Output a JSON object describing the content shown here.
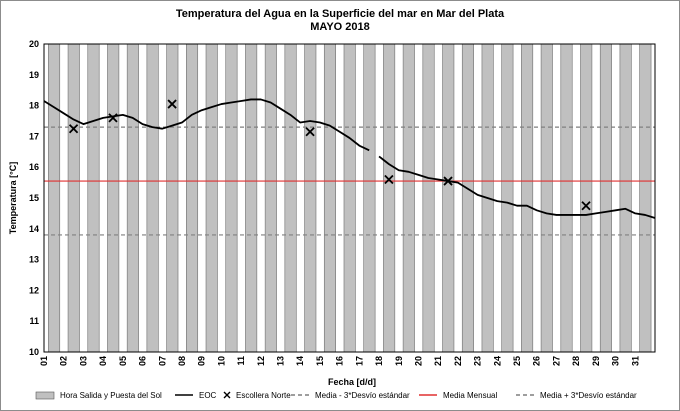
{
  "chart_data": {
    "type": "line",
    "title": "Temperatura del Agua en la Superficie del mar en Mar del Plata",
    "subtitle": "MAYO 2018",
    "xlabel": "Fecha [d/d]",
    "ylabel": "Temperatura [°C]",
    "ylim": [
      10,
      20
    ],
    "y_ticks": [
      "10",
      "11",
      "12",
      "13",
      "14",
      "15",
      "16",
      "17",
      "18",
      "19",
      "20"
    ],
    "x_ticks": [
      "01",
      "02",
      "03",
      "04",
      "05",
      "06",
      "07",
      "08",
      "09",
      "10",
      "11",
      "12",
      "13",
      "14",
      "15",
      "16",
      "17",
      "18",
      "19",
      "20",
      "21",
      "22",
      "23",
      "24",
      "25",
      "26",
      "27",
      "28",
      "29",
      "30",
      "31"
    ],
    "grid": false,
    "legend_position": "bottom",
    "colors": {
      "night_bars": "#c0c0c0",
      "eoc_line": "#000000",
      "mean_line": "#e03030",
      "std_lines": "#7f7f7f"
    },
    "night_bars_per_day": 1,
    "eoc": {
      "name": "EOC",
      "x": [
        1.0,
        1.5,
        2.0,
        2.5,
        3.0,
        3.5,
        4.0,
        4.5,
        5.0,
        5.5,
        6.0,
        6.5,
        7.0,
        7.5,
        8.0,
        8.5,
        9.0,
        9.5,
        10.0,
        10.5,
        11.0,
        11.5,
        12.0,
        12.5,
        13.0,
        13.5,
        14.0,
        14.5,
        15.0,
        15.5,
        16.0,
        16.5,
        17.0,
        17.5,
        null,
        18.0,
        18.5,
        19.0,
        19.5,
        20.0,
        20.5,
        21.0,
        21.5,
        22.0,
        22.5,
        23.0,
        23.5,
        24.0,
        24.5,
        25.0,
        25.5,
        26.0,
        26.5,
        27.0,
        27.5,
        28.0,
        28.5,
        29.0,
        29.5,
        30.0,
        30.5,
        31.0,
        31.5,
        32.0
      ],
      "y": [
        18.15,
        17.95,
        17.75,
        17.55,
        17.4,
        17.5,
        17.6,
        17.65,
        17.7,
        17.6,
        17.4,
        17.3,
        17.25,
        17.35,
        17.45,
        17.7,
        17.85,
        17.95,
        18.05,
        18.1,
        18.15,
        18.2,
        18.2,
        18.1,
        17.9,
        17.7,
        17.45,
        17.5,
        17.45,
        17.35,
        17.15,
        16.95,
        16.7,
        16.55,
        null,
        16.35,
        16.1,
        15.9,
        15.85,
        15.75,
        15.65,
        15.6,
        15.55,
        15.5,
        15.3,
        15.1,
        15.0,
        14.9,
        14.85,
        14.75,
        14.75,
        14.6,
        14.5,
        14.45,
        14.45,
        14.45,
        14.45,
        14.5,
        14.55,
        14.6,
        14.65,
        14.5,
        14.45,
        14.35
      ]
    },
    "escollera_norte": {
      "name": "Escollera Norte",
      "x": [
        2.5,
        4.5,
        7.5,
        14.5,
        18.5,
        21.5,
        28.5
      ],
      "y": [
        17.25,
        17.6,
        18.05,
        17.15,
        15.6,
        15.55,
        14.75
      ]
    },
    "media_mensual": 15.55,
    "media_menos_3_desvio": 13.8,
    "media_mas_3_desvio": 17.3,
    "legend": [
      {
        "key": "night",
        "label": "Hora Salida y Puesta del Sol"
      },
      {
        "key": "eoc",
        "label": "EOC"
      },
      {
        "key": "escollera",
        "label": "Escollera Norte"
      },
      {
        "key": "minus",
        "label": "Media - 3*Desvío estándar"
      },
      {
        "key": "mean",
        "label": "Media Mensual"
      },
      {
        "key": "plus",
        "label": "Media + 3*Desvío estándar"
      }
    ]
  }
}
